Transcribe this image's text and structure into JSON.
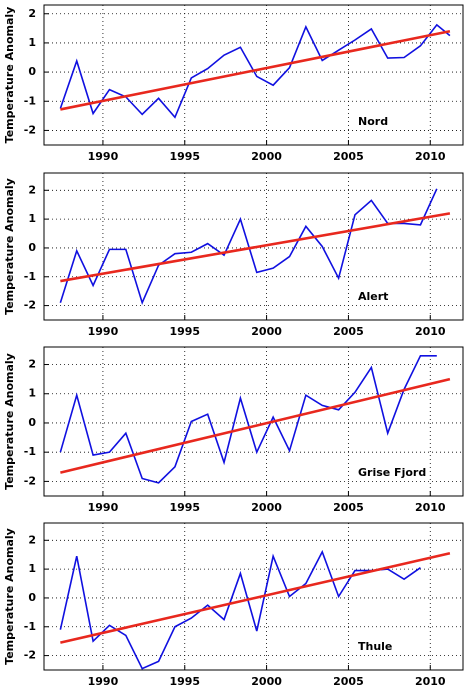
{
  "chart_data": [
    {
      "type": "line",
      "label": "Nord",
      "y_label": "Temperature Anomaly",
      "x": [
        1987.4,
        1988.4,
        1989.4,
        1990.4,
        1991.4,
        1992.4,
        1993.4,
        1994.4,
        1995.4,
        1996.4,
        1997.4,
        1998.4,
        1999.4,
        2000.4,
        2001.4,
        2002.4,
        2003.4,
        2004.4,
        2005.4,
        2006.4,
        2007.4,
        2008.4,
        2009.4,
        2010.4,
        2011.2
      ],
      "series": [
        {
          "color": "#1010e0",
          "values": [
            -1.25,
            0.38,
            -1.42,
            -0.6,
            -0.85,
            -1.45,
            -0.9,
            -1.55,
            -0.2,
            0.12,
            0.58,
            0.85,
            -0.15,
            -0.45,
            0.15,
            1.55,
            0.4,
            0.75,
            1.1,
            1.48,
            0.48,
            0.5,
            0.9,
            1.62,
            1.25
          ]
        }
      ],
      "trend": {
        "x": [
          1987.4,
          2011.2
        ],
        "values": [
          -1.28,
          1.4
        ],
        "color": "#e8281e"
      },
      "xlim": [
        1986.4,
        2012
      ],
      "ylim": [
        -2.5,
        2.3
      ],
      "xticks": [
        1990,
        1995,
        2000,
        2005,
        2010
      ],
      "yticks": [
        -2,
        -1,
        0,
        1,
        2
      ],
      "grid": true
    },
    {
      "type": "line",
      "label": "Alert",
      "y_label": "Temperature Anomaly",
      "x": [
        1987.4,
        1988.4,
        1989.4,
        1990.4,
        1991.4,
        1992.4,
        1993.4,
        1994.4,
        1995.4,
        1996.4,
        1997.4,
        1998.4,
        1999.4,
        2000.4,
        2001.4,
        2002.4,
        2003.4,
        2004.4,
        2005.4,
        2006.4,
        2007.4,
        2008.4,
        2009.4,
        2010.4,
        2011.2
      ],
      "series": [
        {
          "color": "#1010e0",
          "values": [
            -1.9,
            -0.1,
            -1.3,
            -0.05,
            -0.05,
            -1.9,
            -0.6,
            -0.2,
            -0.15,
            0.15,
            -0.25,
            1.0,
            -0.85,
            -0.7,
            -0.3,
            0.75,
            0.05,
            -1.05,
            1.15,
            1.65,
            0.85,
            0.85,
            0.8,
            2.05,
            null
          ]
        }
      ],
      "trend": {
        "x": [
          1987.4,
          2011.2
        ],
        "values": [
          -1.15,
          1.2
        ],
        "color": "#e8281e"
      },
      "xlim": [
        1986.4,
        2012
      ],
      "ylim": [
        -2.5,
        2.6
      ],
      "xticks": [
        1990,
        1995,
        2000,
        2005,
        2010
      ],
      "yticks": [
        -2,
        -1,
        0,
        1,
        2
      ],
      "grid": true
    },
    {
      "type": "line",
      "label": "Grise Fjord",
      "y_label": "Temperature Anomaly",
      "x": [
        1987.4,
        1988.4,
        1989.4,
        1990.4,
        1991.4,
        1992.4,
        1993.4,
        1994.4,
        1995.4,
        1996.4,
        1997.4,
        1998.4,
        1999.4,
        2000.4,
        2001.4,
        2002.4,
        2003.4,
        2004.4,
        2005.4,
        2006.4,
        2007.4,
        2008.4,
        2009.4,
        2010.4,
        2011.2
      ],
      "series": [
        {
          "color": "#1010e0",
          "values": [
            -1.0,
            0.95,
            -1.1,
            -1.0,
            -0.35,
            -1.9,
            -2.05,
            -1.5,
            0.05,
            0.3,
            -1.35,
            0.85,
            -1.0,
            0.2,
            -0.95,
            0.95,
            0.6,
            0.45,
            1.05,
            1.9,
            -0.35,
            1.15,
            2.3,
            2.3,
            null
          ]
        }
      ],
      "trend": {
        "x": [
          1987.4,
          2011.2
        ],
        "values": [
          -1.7,
          1.5
        ],
        "color": "#e8281e"
      },
      "xlim": [
        1986.4,
        2012
      ],
      "ylim": [
        -2.5,
        2.6
      ],
      "xticks": [
        1990,
        1995,
        2000,
        2005,
        2010
      ],
      "yticks": [
        -2,
        -1,
        0,
        1,
        2
      ],
      "grid": true
    },
    {
      "type": "line",
      "label": "Thule",
      "y_label": "Temperature Anomaly",
      "x": [
        1987.4,
        1988.4,
        1989.4,
        1990.4,
        1991.4,
        1992.4,
        1993.4,
        1994.4,
        1995.4,
        1996.4,
        1997.4,
        1998.4,
        1999.4,
        2000.4,
        2001.4,
        2002.4,
        2003.4,
        2004.4,
        2005.4,
        2006.4,
        2007.4,
        2008.4,
        2009.4,
        2010.4,
        2011.2
      ],
      "series": [
        {
          "color": "#1010e0",
          "values": [
            -1.1,
            1.45,
            -1.5,
            -0.95,
            -1.3,
            -2.45,
            -2.2,
            -1.0,
            -0.7,
            -0.25,
            -0.75,
            0.85,
            -1.15,
            1.45,
            0.05,
            0.5,
            1.6,
            0.05,
            0.95,
            0.95,
            1.0,
            0.65,
            1.05,
            null,
            null
          ]
        }
      ],
      "trend": {
        "x": [
          1987.4,
          2011.2
        ],
        "values": [
          -1.55,
          1.55
        ],
        "color": "#e8281e"
      },
      "xlim": [
        1986.4,
        2012
      ],
      "ylim": [
        -2.5,
        2.6
      ],
      "xticks": [
        1990,
        1995,
        2000,
        2005,
        2010
      ],
      "yticks": [
        -2,
        -1,
        0,
        1,
        2
      ],
      "grid": true
    }
  ]
}
